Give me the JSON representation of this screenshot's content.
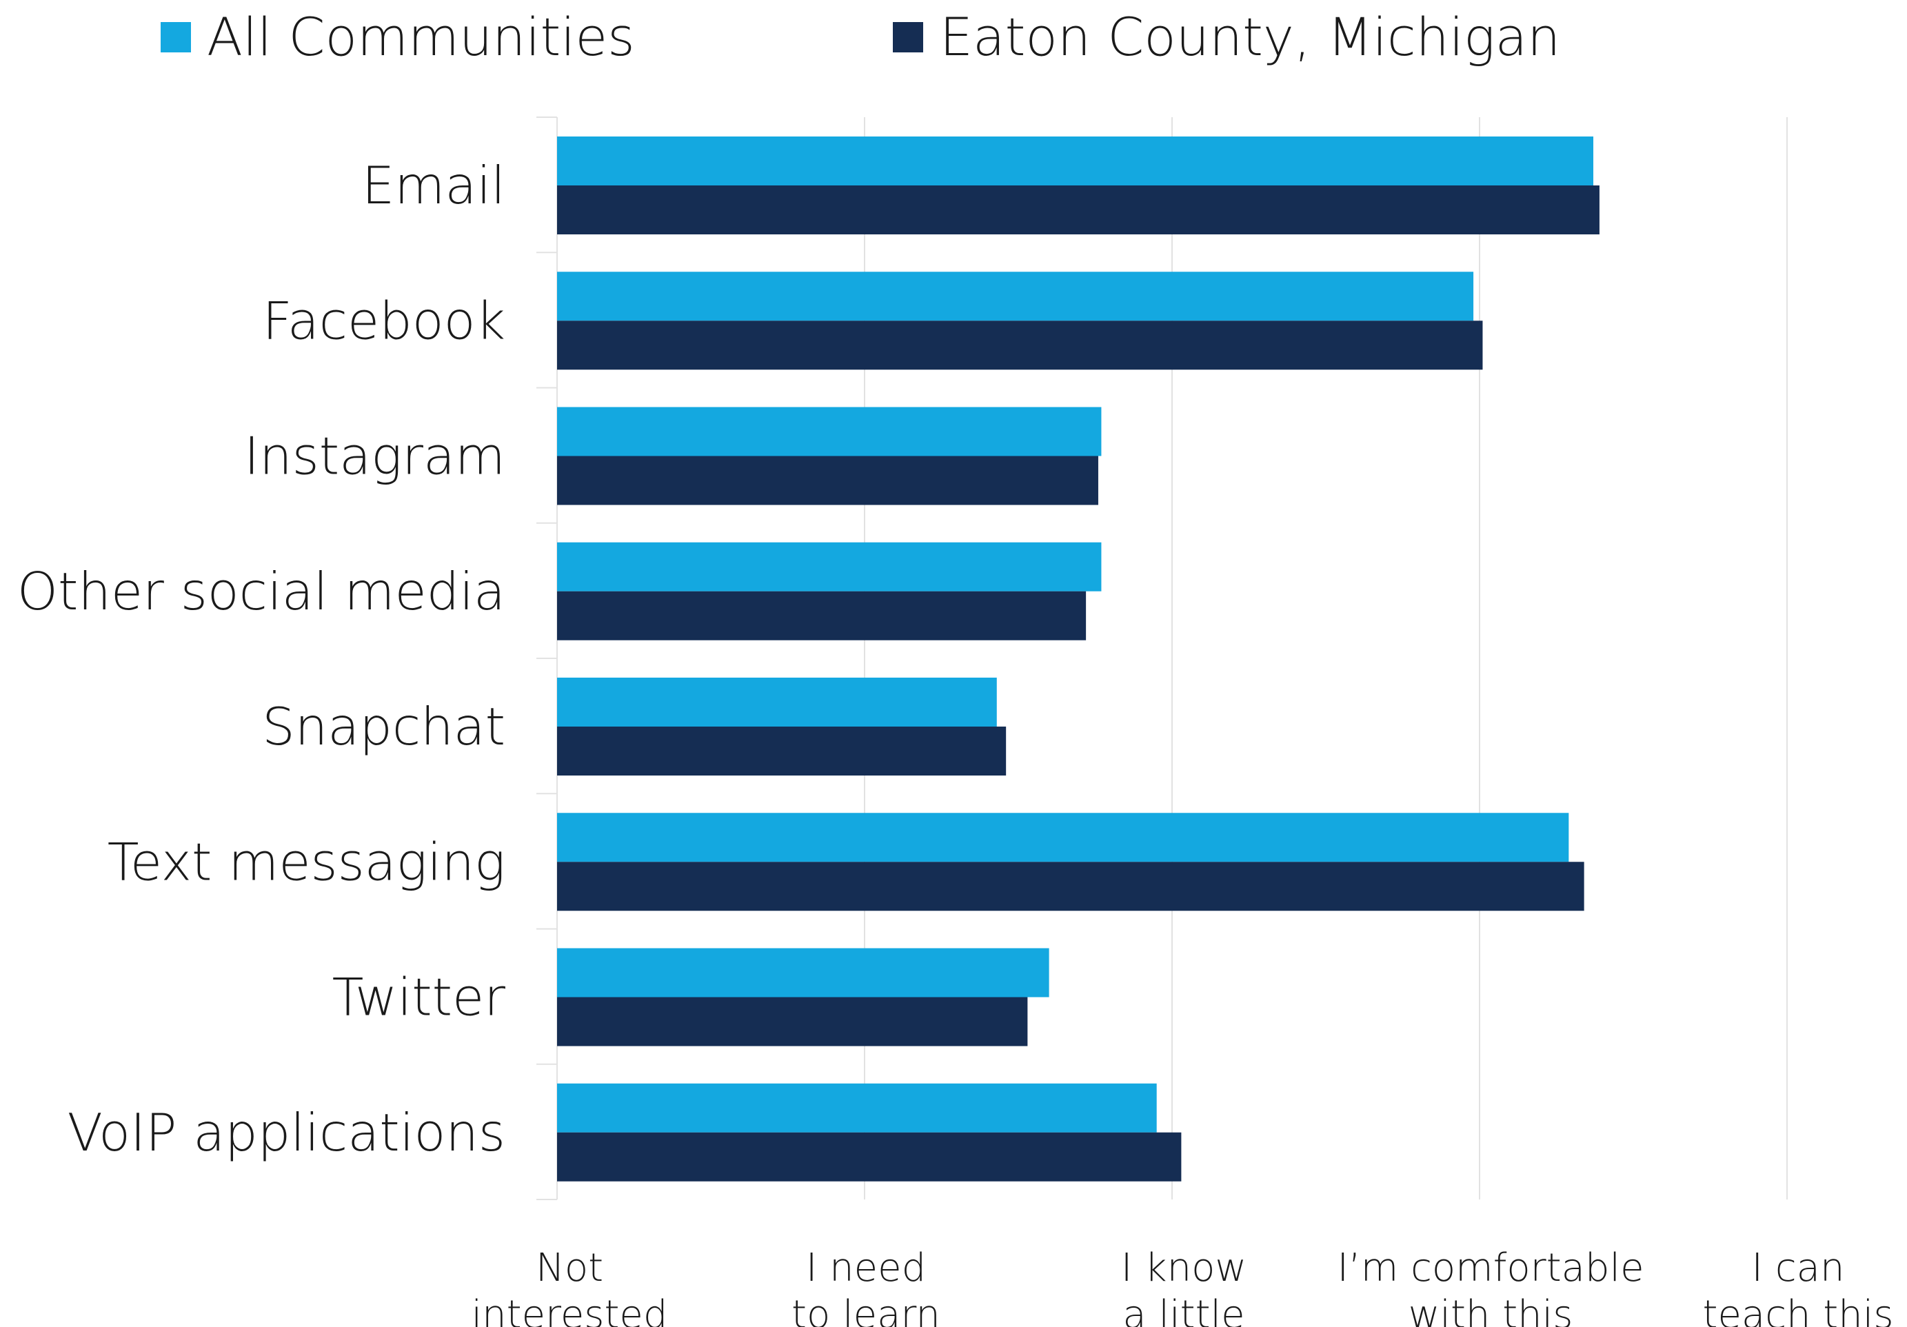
{
  "chart_data": {
    "type": "bar",
    "orientation": "horizontal",
    "title": "",
    "xlabel": "",
    "ylabel": "",
    "categories": [
      "Email",
      "Facebook",
      "Instagram",
      "Other social media",
      "Snapchat",
      "Text messaging",
      "Twitter",
      "VoIP applications"
    ],
    "series": [
      {
        "name": "All Communities",
        "color": "#14a8e0",
        "values": [
          3.37,
          2.98,
          1.77,
          1.77,
          1.43,
          3.29,
          1.6,
          1.95
        ]
      },
      {
        "name": "Eaton County, Michigan",
        "color": "#152d53",
        "values": [
          3.39,
          3.01,
          1.76,
          1.72,
          1.46,
          3.34,
          1.53,
          2.03
        ]
      }
    ],
    "xlim": [
      0,
      4
    ],
    "x_ticks": [
      {
        "value": 0,
        "lines": [
          "Not",
          "interested"
        ]
      },
      {
        "value": 1,
        "lines": [
          "I need",
          "to learn"
        ]
      },
      {
        "value": 2,
        "lines": [
          "I know",
          "a little"
        ]
      },
      {
        "value": 3,
        "lines": [
          "I’m comfortable",
          "with this"
        ]
      },
      {
        "value": 4,
        "lines": [
          "I can",
          "teach this"
        ]
      }
    ],
    "grid": true,
    "legend_position": "top"
  }
}
